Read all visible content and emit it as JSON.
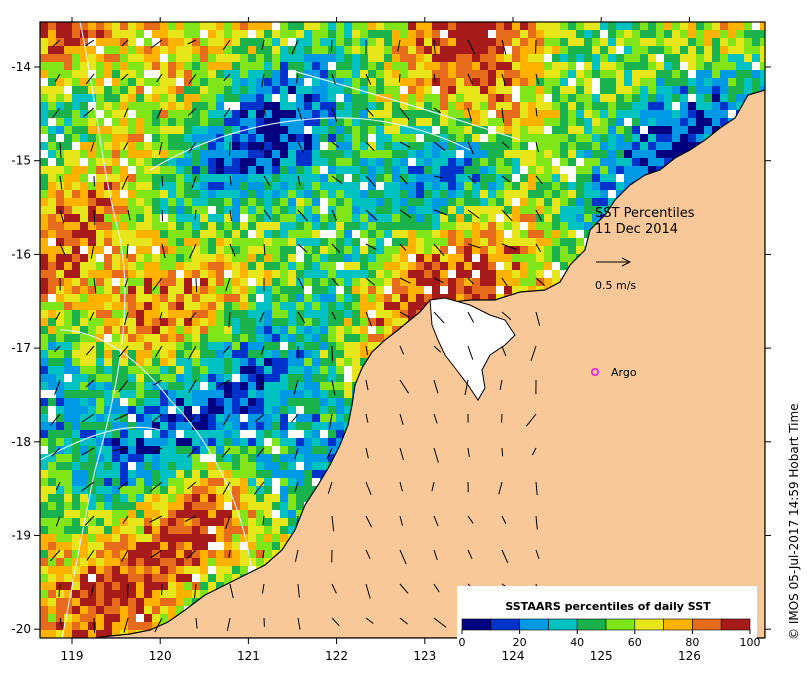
{
  "map": {
    "title_line1": "SST Percentiles",
    "title_line2": "11 Dec 2014",
    "vector_scale_label": "0.5 m/s",
    "argo_label": "Argo",
    "credit": "© IMOS 05-Jul-2017 14:59 Hobart Time",
    "land_color": "#F9C899",
    "missing_color": "#FFFFFF",
    "argo_marker_color": "#E020E0",
    "lon_ticks": [
      "119",
      "120",
      "121",
      "122",
      "123",
      "124",
      "125",
      "126"
    ],
    "lat_ticks": [
      "-14",
      "-15",
      "-16",
      "-17",
      "-18",
      "-19",
      "-20"
    ]
  },
  "colorbar": {
    "title": "SSTAARS percentiles of daily SST",
    "tick_labels": [
      "0",
      "20",
      "40",
      "60",
      "80",
      "100"
    ],
    "colors": [
      "#000080",
      "#0033CC",
      "#0099E6",
      "#00C2C2",
      "#19B24D",
      "#80E61A",
      "#E6E61A",
      "#FFB300",
      "#E66B1A",
      "#A61A1A"
    ]
  }
}
